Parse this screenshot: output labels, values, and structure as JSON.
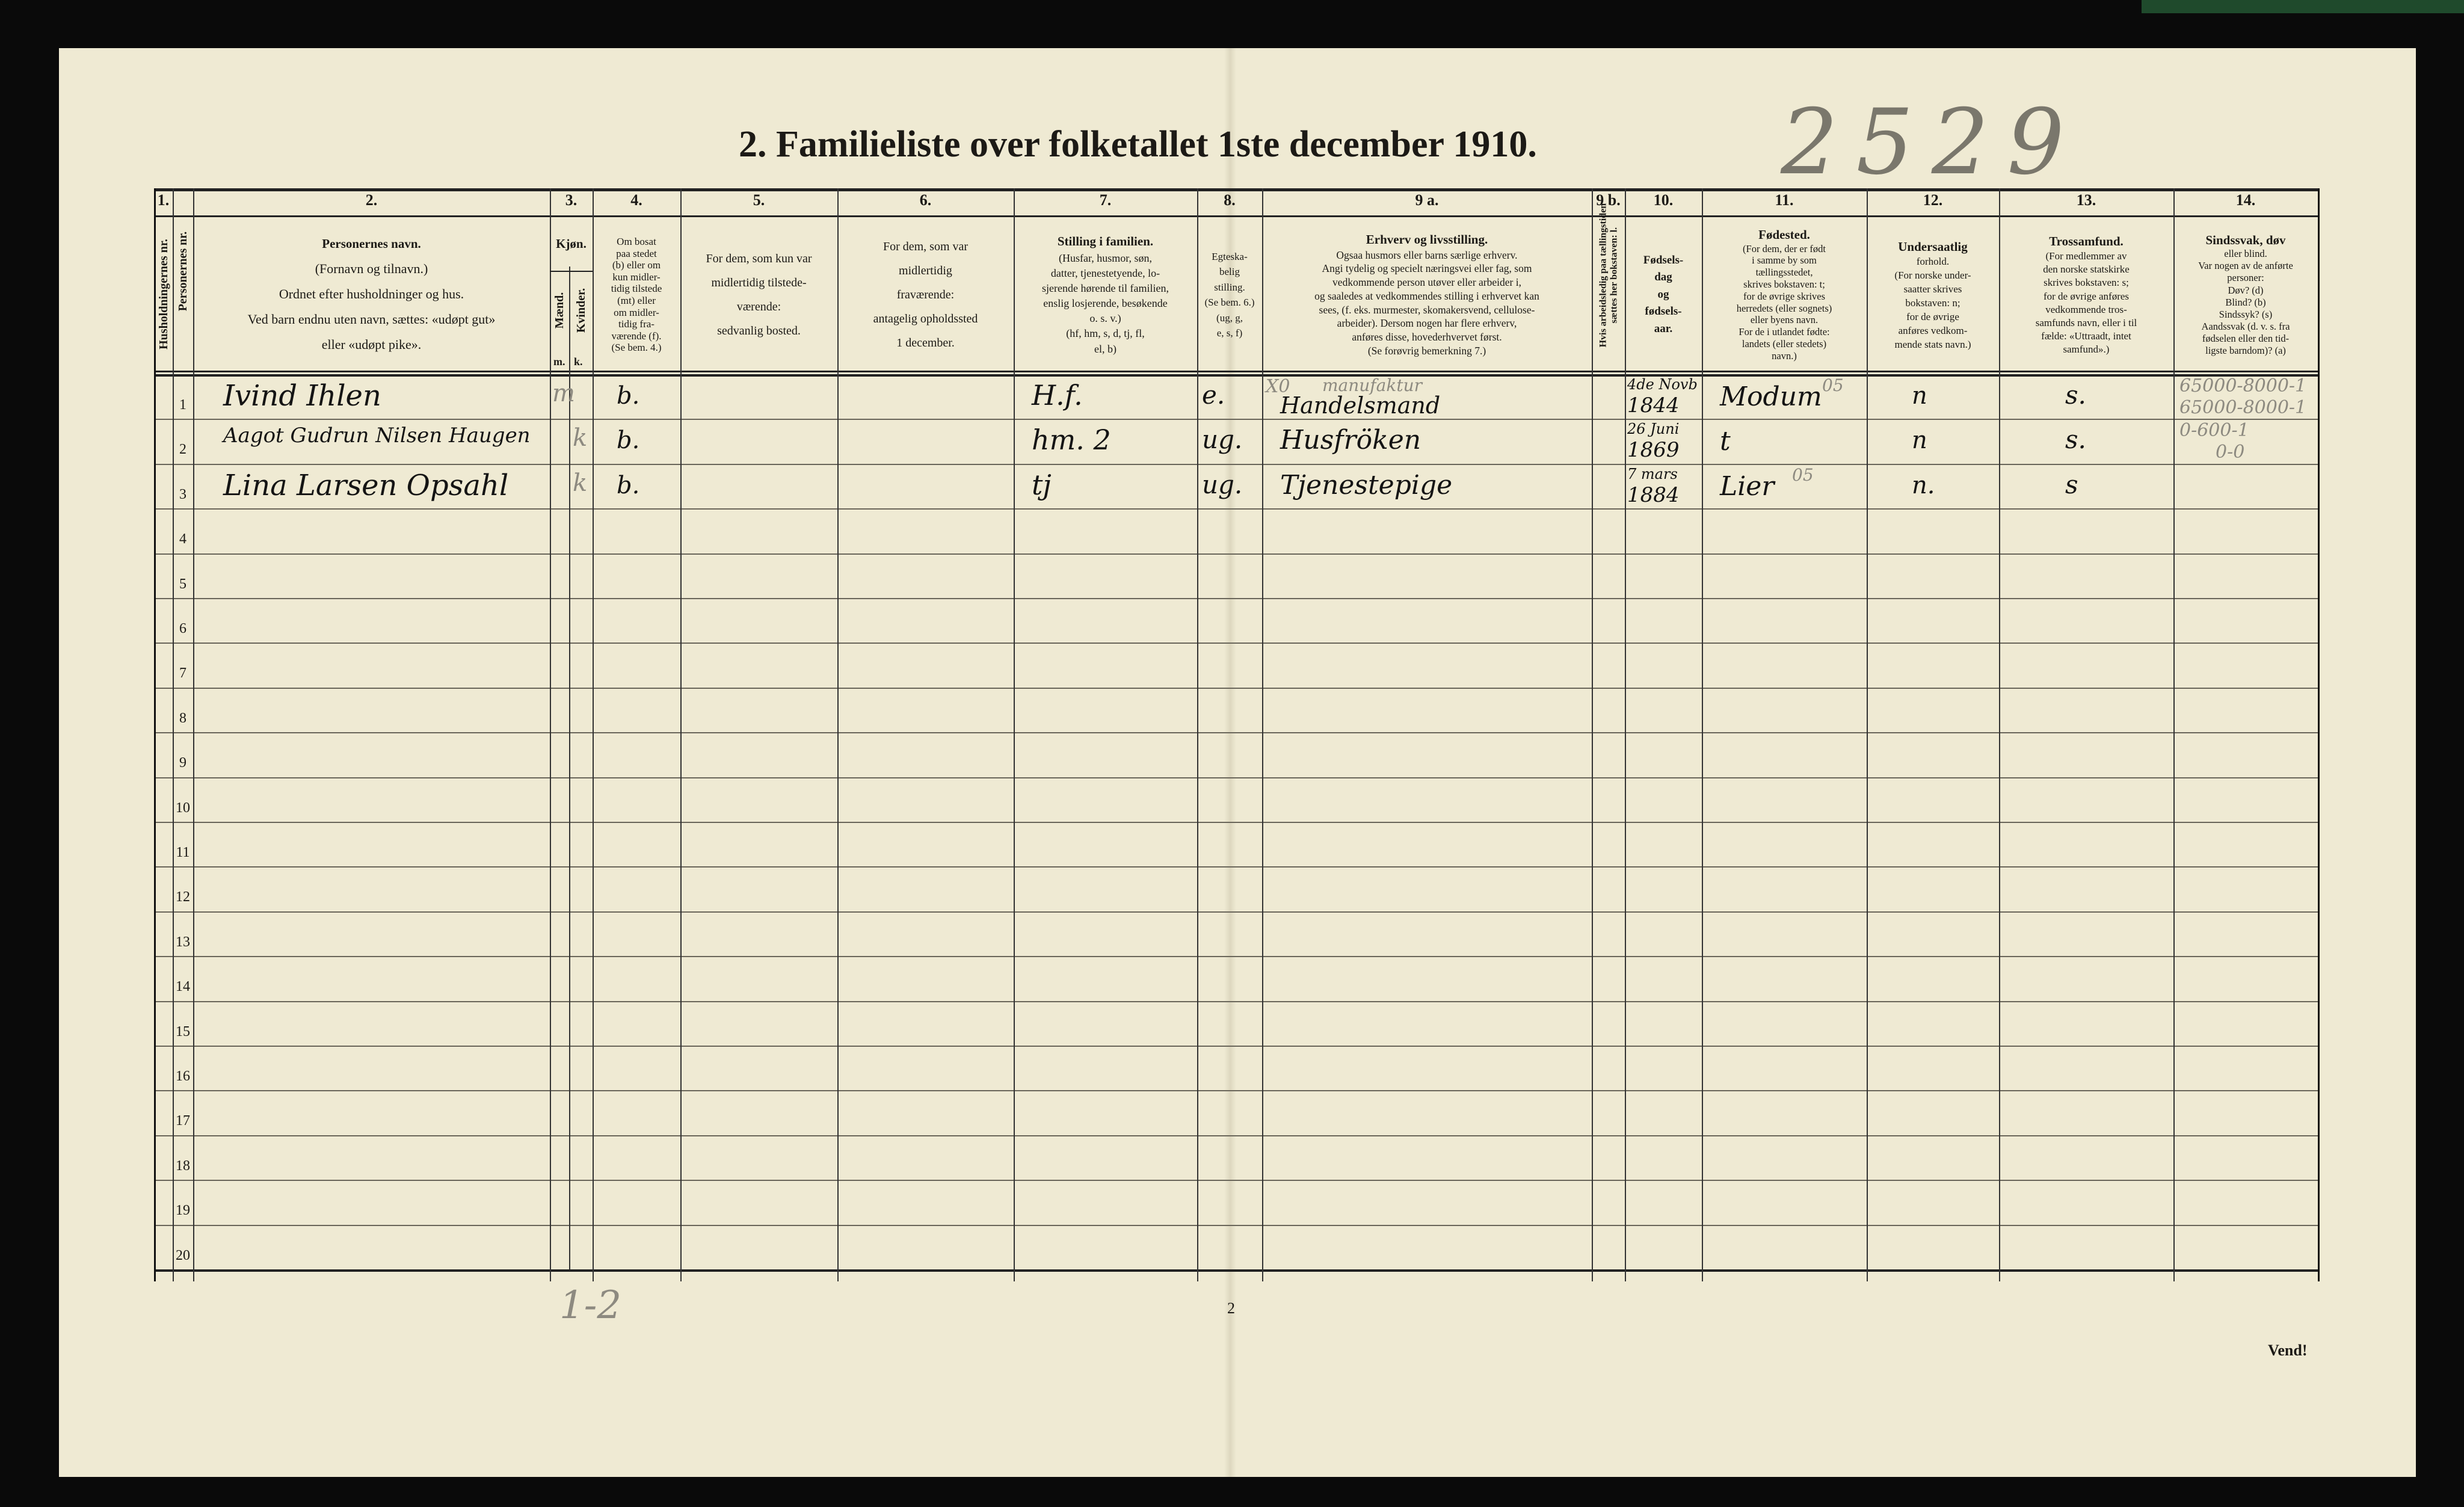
{
  "title": "2.  Familieliste over folketallet 1ste december 1910.",
  "handwritten_number": "2529",
  "column_numbers": [
    "1.",
    "2.",
    "3.",
    "4.",
    "5.",
    "6.",
    "7.",
    "8.",
    "9 a.",
    "9 b.",
    "10.",
    "11.",
    "12.",
    "13.",
    "14."
  ],
  "headers": {
    "household_no": "Husholdningernes nr.",
    "person_no": "Personernes nr.",
    "name": {
      "title": "Personernes navn.",
      "lines": [
        "(Fornavn og tilnavn.)",
        "Ordnet efter husholdninger og hus.",
        "Ved barn endnu uten navn, sættes: «udøpt gut»",
        "eller «udøpt pike»."
      ]
    },
    "sex": {
      "title": "Kjøn.",
      "male": "Mænd.",
      "female": "Kvinder.",
      "m": "m.",
      "k": "k."
    },
    "residence": [
      "Om bosat",
      "paa stedet",
      "(b) eller om",
      "kun midler-",
      "tidig tilstede",
      "(mt) eller",
      "om midler-",
      "tidig fra-",
      "værende (f).",
      "(Se bem. 4.)"
    ],
    "temp_present": [
      "For dem, som kun var",
      "midlertidig tilstede-",
      "værende:",
      "sedvanlig bosted."
    ],
    "temp_absent": [
      "For dem, som var",
      "midlertidig",
      "fraværende:",
      "antagelig opholdssted",
      "1 december."
    ],
    "family_position": {
      "title": "Stilling i familien.",
      "lines": [
        "(Husfar, husmor, søn,",
        "datter, tjenestetyende, lo-",
        "sjerende hørende til familien,",
        "enslig losjerende, besøkende",
        "o. s. v.)",
        "(hf, hm, s, d, tj, fl,",
        "el, b)"
      ]
    },
    "marital": [
      "Egteska-",
      "belig",
      "stilling.",
      "(Se bem. 6.)",
      "(ug, g,",
      "e, s, f)"
    ],
    "occupation": {
      "title": "Erhverv og livsstilling.",
      "lines": [
        "Ogsaa husmors eller barns særlige erhverv.",
        "Angi tydelig og specielt næringsvei eller fag, som",
        "vedkommende person utøver eller arbeider i,",
        "og saaledes at vedkommendes stilling i erhvervet kan",
        "sees, (f. eks. murmester, skomakersvend, cellulose-",
        "arbeider). Dersom nogen har flere erhverv,",
        "anføres disse, hovederhvervet først.",
        "(Se forøvrig bemerkning 7.)"
      ]
    },
    "unemployed": "Hvis arbeidsledig paa tællingstiden sættes her bokstaven: l.",
    "birth": [
      "Fødsels-",
      "dag",
      "og",
      "fødsels-",
      "aar."
    ],
    "birthplace": {
      "title": "Fødested.",
      "lines": [
        "(For dem, der er født",
        "i samme by som",
        "tællingsstedet,",
        "skrives bokstaven: t;",
        "for de øvrige skrives",
        "herredets (eller sognets)",
        "eller byens navn.",
        "For de i utlandet fødte:",
        "landets (eller stedets)",
        "navn.)"
      ]
    },
    "citizenship": {
      "title": "Undersaatlig",
      "lines": [
        "forhold.",
        "(For norske under-",
        "saatter skrives",
        "bokstaven: n;",
        "for de øvrige",
        "anføres vedkom-",
        "mende stats navn.)"
      ]
    },
    "religion": {
      "title": "Trossamfund.",
      "lines": [
        "(For medlemmer av",
        "den norske statskirke",
        "skrives bokstaven: s;",
        "for de øvrige anføres",
        "vedkommende tros-",
        "samfunds navn, eller i til",
        "fælde: «Uttraadt, intet",
        "samfund».)"
      ]
    },
    "disability": {
      "title": "Sindssvak, døv",
      "lines": [
        "eller blind.",
        "Var nogen av de anførte",
        "personer:",
        "Døv?      (d)",
        "Blind?     (b)",
        "Sindssyk?  (s)",
        "Aandssvak (d. v. s. fra",
        "fødselen eller den tid-",
        "ligste barndom)? (a)"
      ]
    }
  },
  "row_numbers": [
    "1",
    "2",
    "3",
    "4",
    "5",
    "6",
    "7",
    "8",
    "9",
    "10",
    "11",
    "12",
    "13",
    "14",
    "15",
    "16",
    "17",
    "18",
    "19",
    "20"
  ],
  "entries": [
    {
      "name": "Ivind Ihlen",
      "sex": "m",
      "residence": "b.",
      "family_position": "H.f.",
      "marital": "e.",
      "occupation_mark": "X0",
      "occupation_note": "manufaktur",
      "occupation": "Handelsmand",
      "birth_day": "4de Novb",
      "birth_year": "1844",
      "birthplace": "Modum",
      "birthplace_code": "05",
      "citizenship": "n",
      "religion": "s.",
      "disability": "65000-8000-1",
      "disability_2": "65000-8000-1"
    },
    {
      "name": "Aagot Gudrun Nilsen Haugen",
      "sex": "k",
      "residence": "b.",
      "family_position": "hm. 2",
      "marital": "ug.",
      "occupation": "Husfröken",
      "birth_day": "26 Juni",
      "birth_year": "1869",
      "birthplace": "t",
      "citizenship": "n",
      "religion": "s.",
      "disability": "0-600-1",
      "disability_2": "0-0"
    },
    {
      "name": "Lina Larsen Opsahl",
      "sex": "k",
      "residence": "b.",
      "family_position": "tj",
      "marital": "ug.",
      "occupation": "Tjenestepige",
      "birth_day": "7 mars",
      "birth_year": "1884",
      "birthplace": "Lier",
      "birthplace_code": "05",
      "citizenship": "n.",
      "religion": "s"
    }
  ],
  "footer": {
    "page_number": "2",
    "tally": "1-2",
    "turn_over": "Vend!"
  },
  "colors": {
    "paper": "#efead3",
    "ink": "#141414",
    "pencil": "#8d8a80",
    "background": "#0a0a0a"
  }
}
